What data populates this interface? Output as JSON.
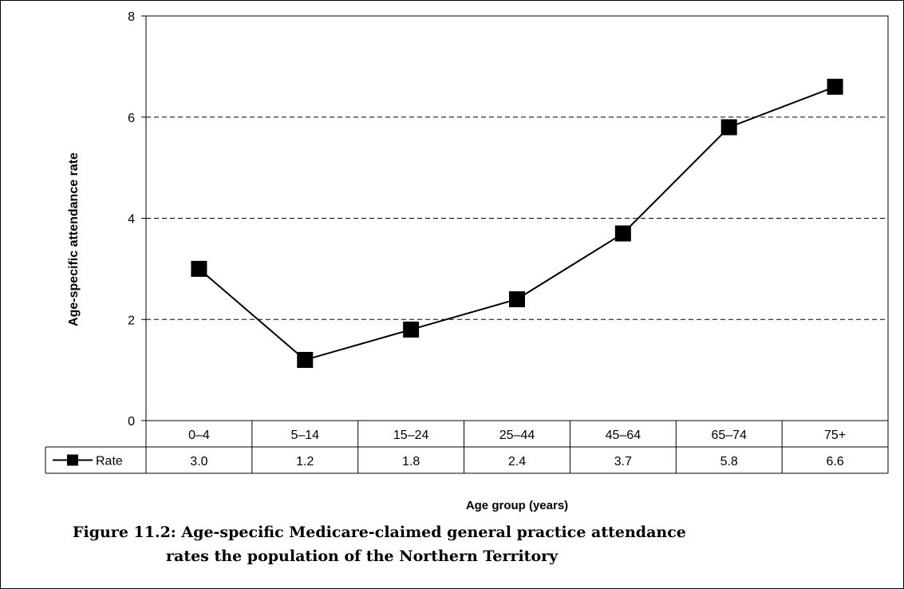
{
  "chart_data": {
    "type": "line",
    "categories": [
      "0–4",
      "5–14",
      "15–24",
      "25–44",
      "45–64",
      "65–74",
      "75+"
    ],
    "series": [
      {
        "name": "Rate",
        "values": [
          3.0,
          1.2,
          1.8,
          2.4,
          3.7,
          5.8,
          6.6
        ]
      }
    ],
    "data_table_values": [
      "3.0",
      "1.2",
      "1.8",
      "2.4",
      "3.7",
      "5.8",
      "6.6"
    ],
    "ylabel": "Age-specific attendance rate",
    "xlabel": "Age group (years)",
    "ylim": [
      0,
      8
    ],
    "yticks": [
      0,
      2,
      4,
      6,
      8
    ],
    "grid": "horizontal dashed",
    "legend": "data table"
  },
  "caption": {
    "line1": "Figure 11.2: Age-specific Medicare-claimed general practice attendance",
    "line2": "rates the population of the Northern Territory"
  }
}
